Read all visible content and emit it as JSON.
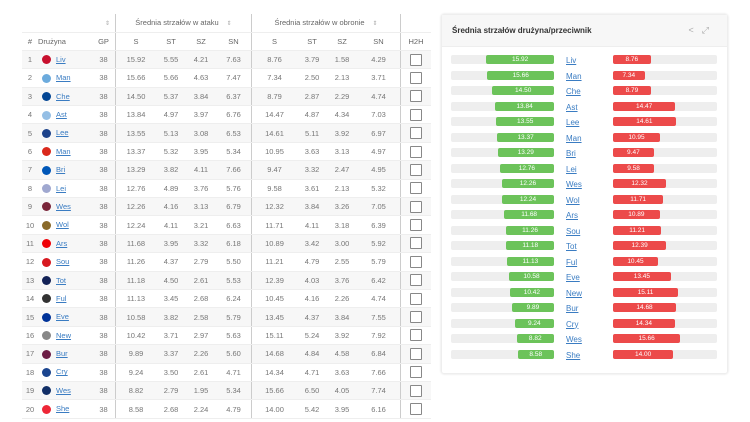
{
  "table": {
    "group_attack": "Średnia strzałów w ataku",
    "group_defense": "Średnia strzałów w obronie",
    "headers": {
      "rank": "#",
      "team": "Drużyna",
      "gp": "GP",
      "s": "S",
      "st": "ST",
      "sz": "SZ",
      "sn": "SN",
      "h2h": "H2H"
    },
    "rows": [
      {
        "rank": "1",
        "team": "Liv",
        "crest": "#c8102e",
        "gp": "38",
        "att": [
          "15.92",
          "5.55",
          "4.21",
          "7.63"
        ],
        "def": [
          "8.76",
          "3.79",
          "1.58",
          "4.29"
        ]
      },
      {
        "rank": "2",
        "team": "Man",
        "crest": "#6cabdd",
        "gp": "38",
        "att": [
          "15.66",
          "5.66",
          "4.63",
          "7.47"
        ],
        "def": [
          "7.34",
          "2.50",
          "2.13",
          "3.71"
        ]
      },
      {
        "rank": "3",
        "team": "Che",
        "crest": "#034694",
        "gp": "38",
        "att": [
          "14.50",
          "5.37",
          "3.84",
          "6.37"
        ],
        "def": [
          "8.79",
          "2.87",
          "2.29",
          "4.74"
        ]
      },
      {
        "rank": "4",
        "team": "Ast",
        "crest": "#95bfe5",
        "gp": "38",
        "att": [
          "13.84",
          "4.97",
          "3.97",
          "6.76"
        ],
        "def": [
          "14.47",
          "4.87",
          "4.34",
          "7.03"
        ]
      },
      {
        "rank": "5",
        "team": "Lee",
        "crest": "#1d428a",
        "gp": "38",
        "att": [
          "13.55",
          "5.13",
          "3.08",
          "6.53"
        ],
        "def": [
          "14.61",
          "5.11",
          "3.92",
          "6.97"
        ]
      },
      {
        "rank": "6",
        "team": "Man",
        "crest": "#da291c",
        "gp": "38",
        "att": [
          "13.37",
          "5.32",
          "3.95",
          "5.34"
        ],
        "def": [
          "10.95",
          "3.63",
          "3.13",
          "4.97"
        ]
      },
      {
        "rank": "7",
        "team": "Bri",
        "crest": "#0057b8",
        "gp": "38",
        "att": [
          "13.29",
          "3.82",
          "4.11",
          "7.66"
        ],
        "def": [
          "9.47",
          "3.32",
          "2.47",
          "4.95"
        ]
      },
      {
        "rank": "8",
        "team": "Lei",
        "crest": "#a0a8d0",
        "gp": "38",
        "att": [
          "12.76",
          "4.89",
          "3.76",
          "5.76"
        ],
        "def": [
          "9.58",
          "3.61",
          "2.13",
          "5.32"
        ]
      },
      {
        "rank": "9",
        "team": "Wes",
        "crest": "#7a263a",
        "gp": "38",
        "att": [
          "12.26",
          "4.16",
          "3.13",
          "6.79"
        ],
        "def": [
          "12.32",
          "3.84",
          "3.26",
          "7.05"
        ]
      },
      {
        "rank": "10",
        "team": "Wol",
        "crest": "#8a6a2a",
        "gp": "38",
        "att": [
          "12.24",
          "4.11",
          "3.21",
          "6.63"
        ],
        "def": [
          "11.71",
          "4.11",
          "3.18",
          "6.39"
        ]
      },
      {
        "rank": "11",
        "team": "Ars",
        "crest": "#ef0107",
        "gp": "38",
        "att": [
          "11.68",
          "3.95",
          "3.32",
          "6.18"
        ],
        "def": [
          "10.89",
          "3.42",
          "3.00",
          "5.92"
        ]
      },
      {
        "rank": "12",
        "team": "Sou",
        "crest": "#d71920",
        "gp": "38",
        "att": [
          "11.26",
          "4.37",
          "2.79",
          "5.50"
        ],
        "def": [
          "11.21",
          "4.79",
          "2.55",
          "5.79"
        ]
      },
      {
        "rank": "13",
        "team": "Tot",
        "crest": "#132257",
        "gp": "38",
        "att": [
          "11.18",
          "4.50",
          "2.61",
          "5.53"
        ],
        "def": [
          "12.39",
          "4.03",
          "3.76",
          "6.42"
        ]
      },
      {
        "rank": "14",
        "team": "Ful",
        "crest": "#333333",
        "gp": "38",
        "att": [
          "11.13",
          "3.45",
          "2.68",
          "6.24"
        ],
        "def": [
          "10.45",
          "4.16",
          "2.26",
          "4.74"
        ]
      },
      {
        "rank": "15",
        "team": "Eve",
        "crest": "#003399",
        "gp": "38",
        "att": [
          "10.58",
          "3.82",
          "2.58",
          "5.79"
        ],
        "def": [
          "13.45",
          "4.37",
          "3.84",
          "7.55"
        ]
      },
      {
        "rank": "16",
        "team": "New",
        "crest": "#888888",
        "gp": "38",
        "att": [
          "10.42",
          "3.71",
          "2.97",
          "5.63"
        ],
        "def": [
          "15.11",
          "5.24",
          "3.92",
          "7.92"
        ]
      },
      {
        "rank": "17",
        "team": "Bur",
        "crest": "#6c1d45",
        "gp": "38",
        "att": [
          "9.89",
          "3.37",
          "2.26",
          "5.60"
        ],
        "def": [
          "14.68",
          "4.84",
          "4.58",
          "6.84"
        ]
      },
      {
        "rank": "18",
        "team": "Cry",
        "crest": "#1b458f",
        "gp": "38",
        "att": [
          "9.24",
          "3.50",
          "2.61",
          "4.71"
        ],
        "def": [
          "14.34",
          "4.71",
          "3.63",
          "7.66"
        ]
      },
      {
        "rank": "19",
        "team": "Wes",
        "crest": "#122f67",
        "gp": "38",
        "att": [
          "8.82",
          "2.79",
          "1.95",
          "5.34"
        ],
        "def": [
          "15.66",
          "6.50",
          "4.05",
          "7.74"
        ]
      },
      {
        "rank": "20",
        "team": "She",
        "crest": "#ee2737",
        "gp": "38",
        "att": [
          "8.58",
          "2.68",
          "2.24",
          "4.79"
        ],
        "def": [
          "14.00",
          "5.42",
          "3.95",
          "6.16"
        ]
      }
    ]
  },
  "panel": {
    "title": "Średnia strzałów drużyna/przeciwnik",
    "share_icon": "share-icon",
    "expand_icon": "expand-icon"
  },
  "colors": {
    "for": "#6cc35a",
    "against": "#ec4a4a",
    "link": "#3a7cc2"
  }
}
